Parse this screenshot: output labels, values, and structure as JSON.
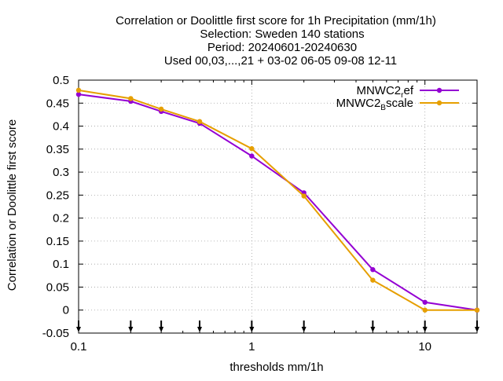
{
  "chart_data": {
    "type": "line",
    "title_lines": [
      "Correlation or Doolittle first score  for 1h Precipitation (mm/1h)",
      "Selection: Sweden    140 stations",
      "Period: 20240601-20240630",
      "Used 00,03,...,21 + 03-02 06-05 09-08 12-11"
    ],
    "xlabel": "thresholds mm/1h",
    "ylabel": "Correlation or Doolittle first score",
    "x_scale": "log",
    "xlim": [
      0.1,
      20
    ],
    "ylim": [
      -0.05,
      0.5
    ],
    "x_ticks": [
      0.1,
      1,
      10
    ],
    "x_tick_labels": [
      "0.1",
      "1",
      "10"
    ],
    "y_ticks": [
      -0.05,
      0,
      0.05,
      0.1,
      0.15,
      0.2,
      0.25,
      0.3,
      0.35,
      0.4,
      0.45,
      0.5
    ],
    "y_tick_labels": [
      "-0.05",
      "0",
      "0.05",
      "0.1",
      "0.15",
      "0.2",
      "0.25",
      "0.3",
      "0.35",
      "0.4",
      "0.45",
      "0.5"
    ],
    "grid": true,
    "legend_position": "top-right",
    "threshold_markers": [
      0.1,
      0.2,
      0.3,
      0.5,
      1,
      2,
      5,
      10,
      20
    ],
    "x": [
      0.1,
      0.2,
      0.3,
      0.5,
      1,
      2,
      5,
      10,
      20
    ],
    "series": [
      {
        "name_main": "MNWC2",
        "name_sub": "r",
        "name_rest": "ef",
        "color": "#9400d3",
        "values": [
          0.469,
          0.454,
          0.432,
          0.406,
          0.335,
          0.255,
          0.088,
          0.017,
          0.0
        ]
      },
      {
        "name_main": "MNWC2",
        "name_sub": "B",
        "name_rest": "scale",
        "color": "#e69f00",
        "values": [
          0.478,
          0.46,
          0.437,
          0.41,
          0.351,
          0.248,
          0.065,
          0.0,
          0.0
        ]
      }
    ]
  }
}
